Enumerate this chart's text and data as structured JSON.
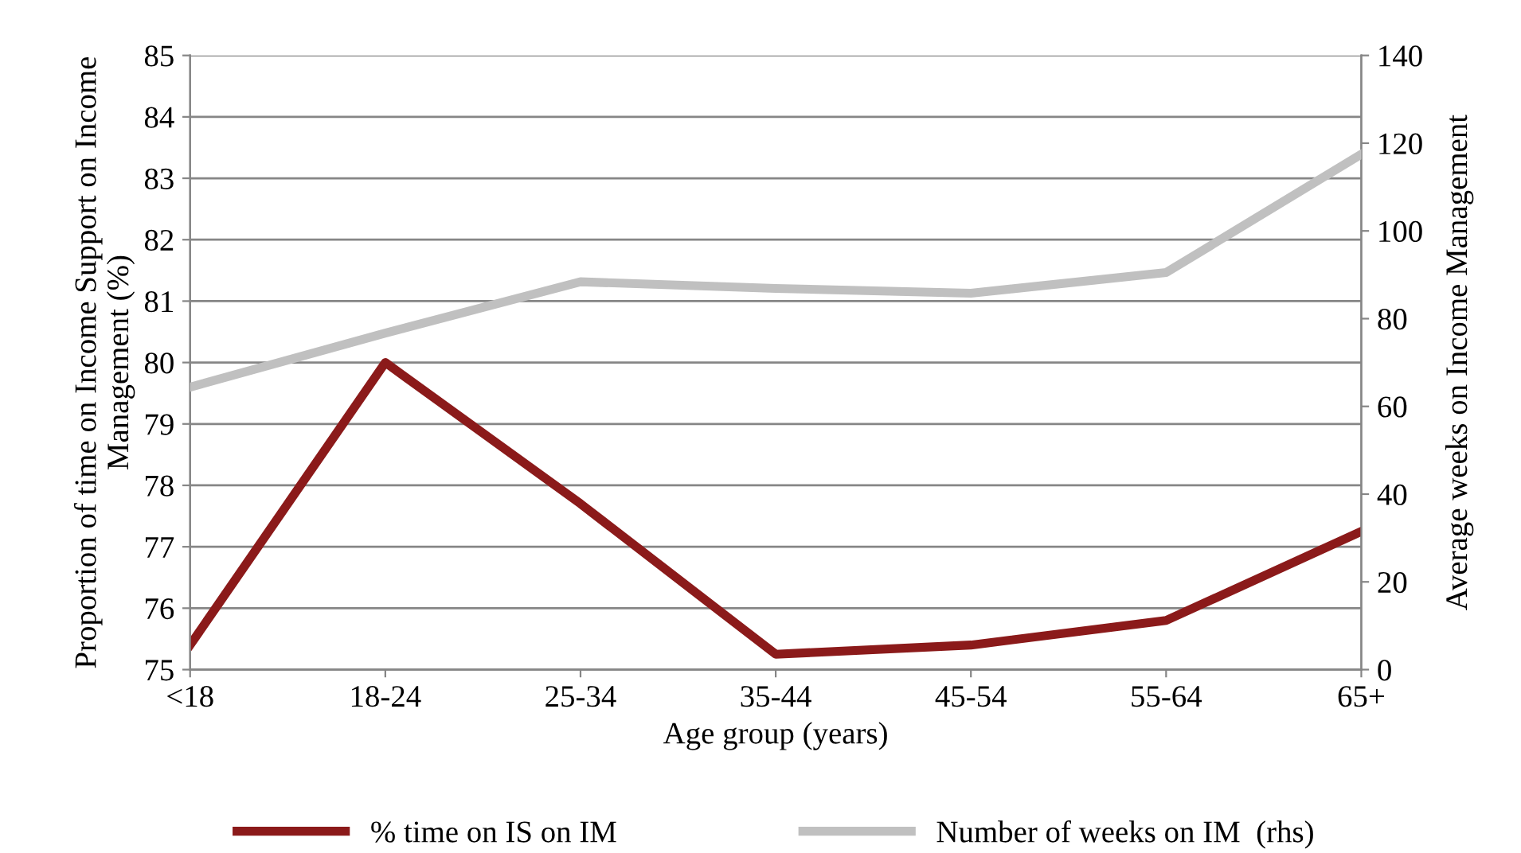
{
  "chart_data": {
    "type": "line",
    "xlabel": "Age group (years)",
    "ylabel": "Proportion of time on Income Support on Income Management (%)",
    "y2label": "Average weeks on Income Management",
    "categories": [
      "<18",
      "18-24",
      "25-34",
      "35-44",
      "45-54",
      "55-64",
      "65+"
    ],
    "series": [
      {
        "name": "% time on IS on IM",
        "color": "#8b1a1a",
        "values": [
          75.4,
          80.0,
          77.7,
          75.25,
          75.4,
          75.8,
          77.25
        ]
      },
      {
        "name": "Number of weeks on IM  (rhs)",
        "color": "#c0c0c0",
        "axis": "y2",
        "values": [
          64.4,
          76.7,
          88.4,
          86.9,
          85.8,
          90.5,
          117.5
        ]
      }
    ],
    "ylim": [
      75,
      85
    ],
    "yticks": [
      75,
      76,
      77,
      78,
      79,
      80,
      81,
      82,
      83,
      84,
      85
    ],
    "y2lim": [
      0,
      140
    ],
    "y2ticks": [
      0,
      20,
      40,
      60,
      80,
      100,
      120,
      140
    ],
    "grid": "y",
    "legend": "bottom",
    "marker": "none",
    "line_style": "solid"
  }
}
